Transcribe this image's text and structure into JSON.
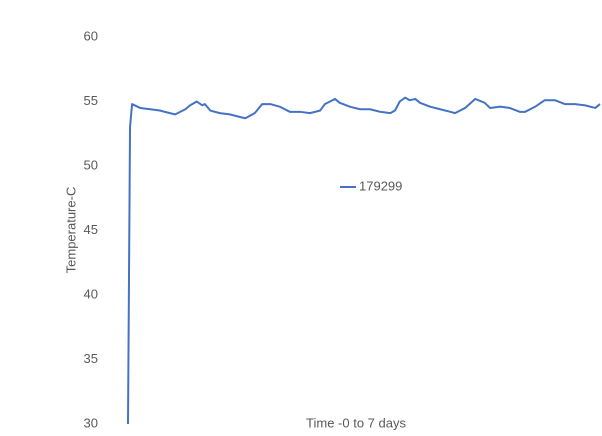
{
  "chart_data": {
    "type": "line",
    "x_label": "Time -0 to 7 days",
    "y_label": "Temperature-C",
    "xlim": [
      0,
      7
    ],
    "ylim": [
      30,
      60
    ],
    "yticks": [
      30,
      35,
      40,
      45,
      50,
      55,
      60
    ],
    "legend": "center",
    "series": [
      {
        "name": "179299",
        "color": "#4472c4",
        "x": [
          0,
          0.03,
          0.06,
          0.18,
          0.33,
          0.47,
          0.62,
          0.7,
          0.85,
          0.92,
          1.02,
          1.1,
          1.14,
          1.22,
          1.36,
          1.51,
          1.66,
          1.74,
          1.88,
          1.99,
          2.11,
          2.25,
          2.4,
          2.55,
          2.7,
          2.85,
          2.92,
          3.07,
          3.14,
          3.29,
          3.44,
          3.59,
          3.74,
          3.89,
          3.96,
          4.03,
          4.11,
          4.18,
          4.26,
          4.33,
          4.48,
          4.63,
          4.78,
          4.85,
          5.0,
          5.15,
          5.29,
          5.37,
          5.52,
          5.66,
          5.81,
          5.89,
          6.04,
          6.18,
          6.33,
          6.48,
          6.63,
          6.78,
          6.93,
          7.0
        ],
        "values": [
          30,
          53,
          54.8,
          54.5,
          54.4,
          54.3,
          54.1,
          54.0,
          54.4,
          54.7,
          55.0,
          54.7,
          54.8,
          54.3,
          54.1,
          54.0,
          53.8,
          53.7,
          54.1,
          54.8,
          54.8,
          54.6,
          54.2,
          54.2,
          54.1,
          54.3,
          54.8,
          55.2,
          54.9,
          54.6,
          54.4,
          54.4,
          54.2,
          54.1,
          54.3,
          55.0,
          55.3,
          55.1,
          55.2,
          54.9,
          54.6,
          54.4,
          54.2,
          54.1,
          54.5,
          55.2,
          54.9,
          54.5,
          54.6,
          54.5,
          54.2,
          54.2,
          54.6,
          55.1,
          55.1,
          54.8,
          54.8,
          54.7,
          54.5,
          54.8
        ]
      }
    ]
  }
}
